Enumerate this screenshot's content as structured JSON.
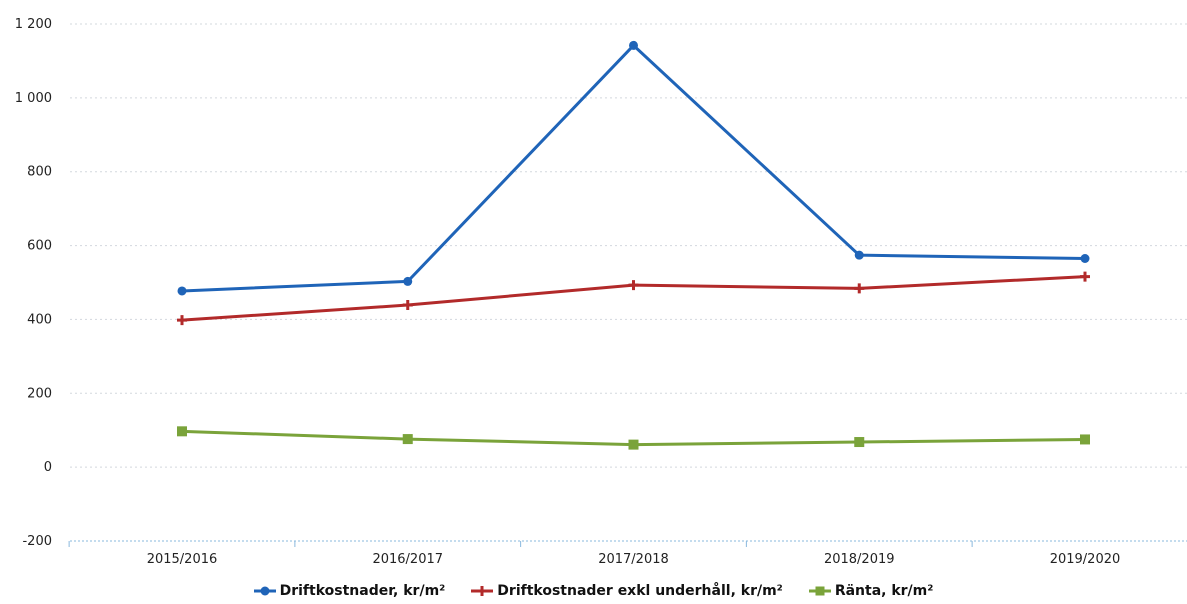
{
  "chart_data": {
    "type": "line",
    "categories": [
      "2015/2016",
      "2016/2017",
      "2017/2018",
      "2018/2019",
      "2019/2020"
    ],
    "ylim": [
      -200,
      1200
    ],
    "yticks": [
      -200,
      0,
      200,
      400,
      600,
      800,
      1000,
      1200
    ],
    "ytick_labels": [
      "-200",
      "0",
      "200",
      "400",
      "600",
      "800",
      "1 000",
      "1 200"
    ],
    "grid": true,
    "legend_position": "bottom",
    "series": [
      {
        "name": "Driftkostnader, kr/m²",
        "color": "#1f64b8",
        "marker": "circle",
        "values": [
          477,
          503,
          1142,
          574,
          565
        ]
      },
      {
        "name": "Driftkostnader exkl underhåll, kr/m²",
        "color": "#b22a2a",
        "marker": "plus",
        "values": [
          398,
          439,
          493,
          484,
          516
        ]
      },
      {
        "name": "Ränta, kr/m²",
        "color": "#7aa33a",
        "marker": "square",
        "values": [
          97,
          76,
          61,
          68,
          75
        ]
      }
    ]
  }
}
